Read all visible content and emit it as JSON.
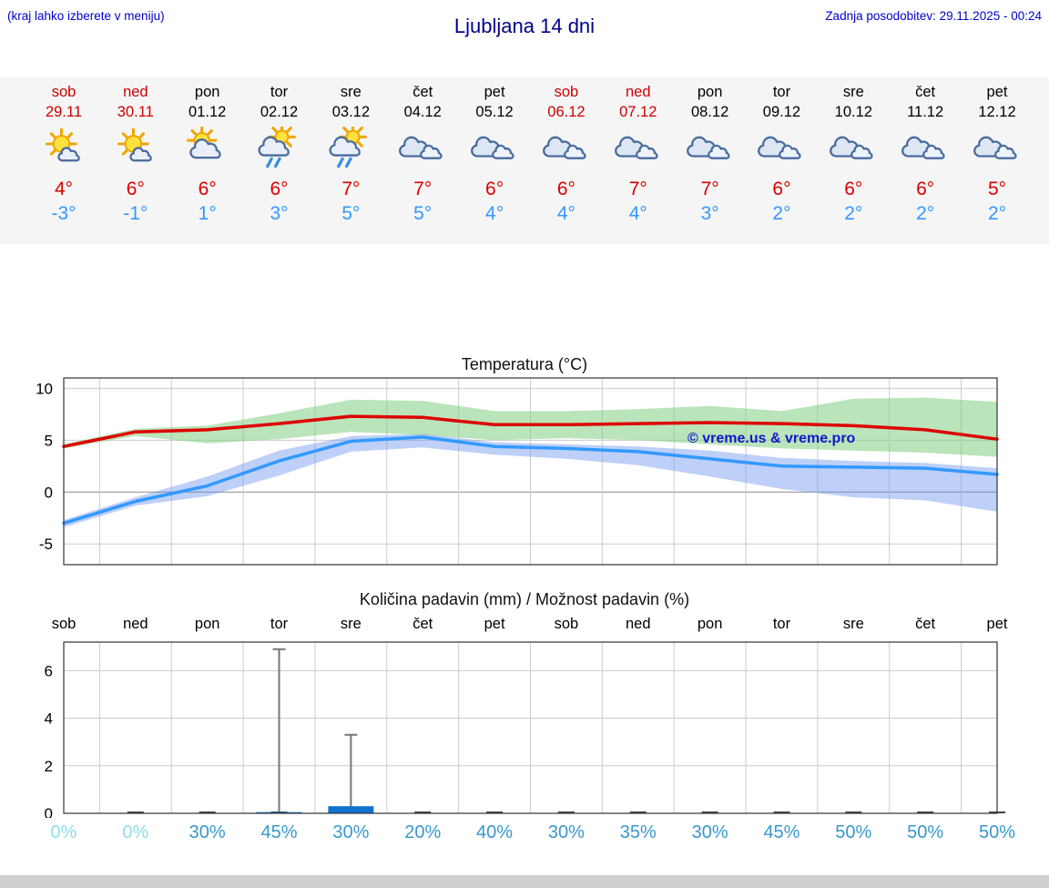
{
  "header": {
    "menu_hint": "(kraj lahko izberete v meniju)",
    "title": "Ljubljana 14 dni",
    "last_update": "Zadnja posodobitev: 29.11.2025 - 00:24"
  },
  "colors": {
    "title_blue": "#00008b",
    "header_blue": "#0000cc",
    "weekend_red": "#cc0000",
    "high_red": "#dd0000",
    "low_blue": "#3399ff",
    "percent_zero": "#8fdde9",
    "percent_nonzero": "#3898cc",
    "strip_bg": "#f5f5f5",
    "max_band_green": "rgba(130,205,130,0.55)",
    "min_band_blue": "rgba(110,150,240,0.45)",
    "bar_blue": "#1272d0",
    "whisker_gray": "#777777"
  },
  "forecast_days": [
    {
      "name": "sob",
      "date": "29.11",
      "weekend": true,
      "icon": "sunny-small-cloud",
      "high": "4°",
      "low": "-3°"
    },
    {
      "name": "ned",
      "date": "30.11",
      "weekend": true,
      "icon": "sunny-small-cloud",
      "high": "6°",
      "low": "-1°"
    },
    {
      "name": "pon",
      "date": "01.12",
      "weekend": false,
      "icon": "partly-cloudy",
      "high": "6°",
      "low": "1°"
    },
    {
      "name": "tor",
      "date": "02.12",
      "weekend": false,
      "icon": "sun-showers",
      "high": "6°",
      "low": "3°"
    },
    {
      "name": "sre",
      "date": "03.12",
      "weekend": false,
      "icon": "sun-showers",
      "high": "7°",
      "low": "5°"
    },
    {
      "name": "čet",
      "date": "04.12",
      "weekend": false,
      "icon": "cloudy",
      "high": "7°",
      "low": "5°"
    },
    {
      "name": "pet",
      "date": "05.12",
      "weekend": false,
      "icon": "cloudy",
      "high": "6°",
      "low": "4°"
    },
    {
      "name": "sob",
      "date": "06.12",
      "weekend": true,
      "icon": "cloudy",
      "high": "6°",
      "low": "4°"
    },
    {
      "name": "ned",
      "date": "07.12",
      "weekend": true,
      "icon": "cloudy",
      "high": "7°",
      "low": "4°"
    },
    {
      "name": "pon",
      "date": "08.12",
      "weekend": false,
      "icon": "cloudy",
      "high": "7°",
      "low": "3°"
    },
    {
      "name": "tor",
      "date": "09.12",
      "weekend": false,
      "icon": "cloudy",
      "high": "6°",
      "low": "2°"
    },
    {
      "name": "sre",
      "date": "10.12",
      "weekend": false,
      "icon": "cloudy",
      "high": "6°",
      "low": "2°"
    },
    {
      "name": "čet",
      "date": "11.12",
      "weekend": false,
      "icon": "cloudy",
      "high": "6°",
      "low": "2°"
    },
    {
      "name": "pet",
      "date": "12.12",
      "weekend": false,
      "icon": "cloudy",
      "high": "5°",
      "low": "2°"
    }
  ],
  "chart_data": [
    {
      "type": "line",
      "title": "Temperatura (°C)",
      "x_days": [
        "sob",
        "ned",
        "pon",
        "tor",
        "sre",
        "čet",
        "pet",
        "sob",
        "ned",
        "pon",
        "tor",
        "sre",
        "čet",
        "pet"
      ],
      "ylim": [
        -7,
        11
      ],
      "yticks": [
        10,
        5,
        0,
        -5
      ],
      "grid": true,
      "watermark": "© vreme.us & vreme.pro",
      "series": [
        {
          "name": "max_temp",
          "color": "#dd0000",
          "values": [
            4.4,
            5.8,
            6.0,
            6.6,
            7.3,
            7.2,
            6.5,
            6.5,
            6.6,
            6.7,
            6.6,
            6.4,
            6.0,
            5.1
          ]
        },
        {
          "name": "min_temp",
          "color": "#3399ff",
          "values": [
            -3.0,
            -0.9,
            0.6,
            3.0,
            4.9,
            5.3,
            4.4,
            4.2,
            3.9,
            3.2,
            2.5,
            2.4,
            2.3,
            1.7
          ]
        }
      ],
      "bands": [
        {
          "name": "max_range",
          "upper": [
            4.6,
            6.1,
            6.4,
            7.6,
            8.9,
            8.8,
            7.8,
            7.8,
            8.0,
            8.3,
            7.8,
            9.0,
            9.1,
            8.7
          ],
          "lower": [
            4.2,
            5.4,
            4.7,
            5.1,
            5.8,
            5.5,
            5.0,
            5.2,
            5.0,
            4.6,
            4.2,
            4.0,
            3.8,
            3.4
          ]
        },
        {
          "name": "min_range",
          "upper": [
            -2.7,
            -0.5,
            1.5,
            4.0,
            5.4,
            5.6,
            4.8,
            4.6,
            4.4,
            4.0,
            3.3,
            3.0,
            2.8,
            2.3
          ],
          "lower": [
            -3.4,
            -1.3,
            -0.4,
            1.6,
            3.9,
            4.3,
            3.6,
            3.2,
            2.6,
            1.5,
            0.3,
            -0.5,
            -0.8,
            -1.9
          ]
        }
      ]
    },
    {
      "type": "bar",
      "title": "Količina padavin (mm) / Možnost padavin (%)",
      "x_days": [
        "sob",
        "ned",
        "pon",
        "tor",
        "sre",
        "čet",
        "pet",
        "sob",
        "ned",
        "pon",
        "tor",
        "sre",
        "čet",
        "pet"
      ],
      "ylim": [
        0,
        7.2
      ],
      "yticks": [
        6,
        4,
        2,
        0
      ],
      "grid": true,
      "precip_mm": [
        0,
        0,
        0,
        0.05,
        0.3,
        0,
        0,
        0,
        0,
        0,
        0,
        0,
        0,
        0
      ],
      "precip_max_mm": [
        0,
        0,
        0,
        6.9,
        3.3,
        0,
        0,
        0,
        0,
        0,
        0,
        0,
        0,
        0
      ],
      "precip_prob": [
        "0%",
        "0%",
        "30%",
        "45%",
        "30%",
        "20%",
        "40%",
        "30%",
        "35%",
        "30%",
        "45%",
        "50%",
        "50%",
        "50%"
      ]
    }
  ]
}
